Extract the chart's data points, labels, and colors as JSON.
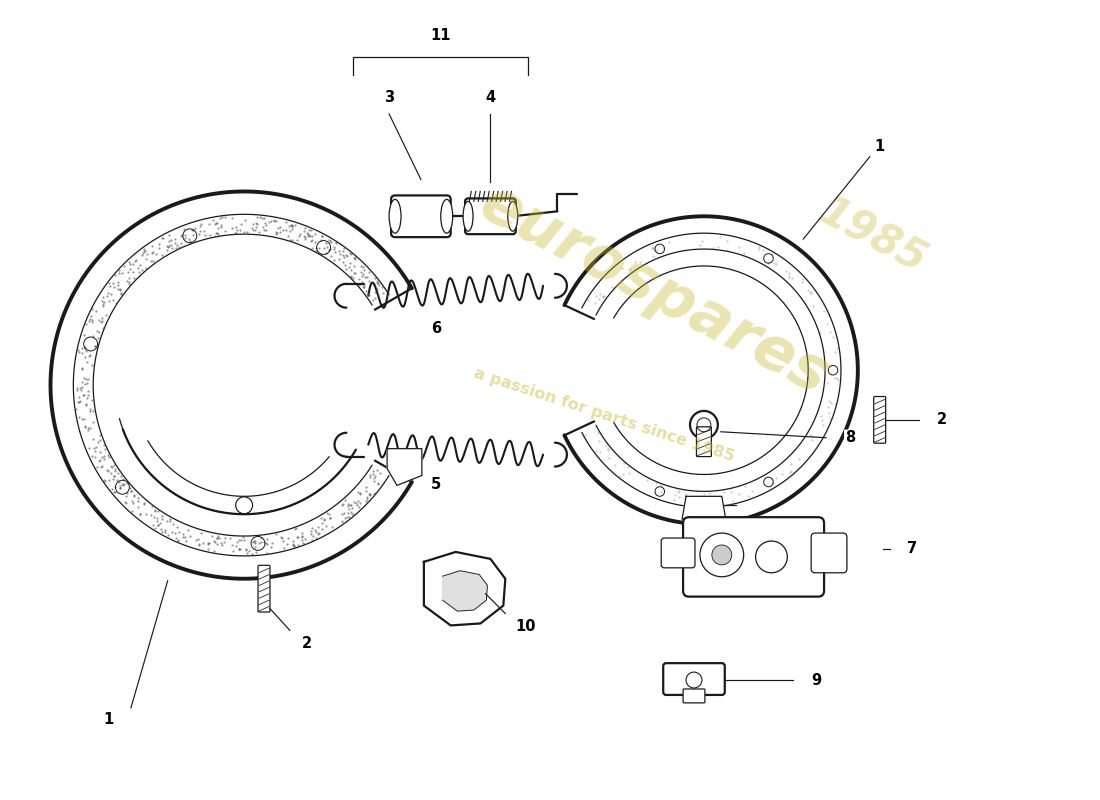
{
  "background_color": "#ffffff",
  "line_color": "#1a1a1a",
  "watermark_color": "#c8b830",
  "watermark_alpha": 0.38,
  "watermark1": "eurospares",
  "watermark2": "a passion for parts since 1985",
  "watermark3": "1985",
  "fig_width": 11.0,
  "fig_height": 8.0,
  "dpi": 100
}
